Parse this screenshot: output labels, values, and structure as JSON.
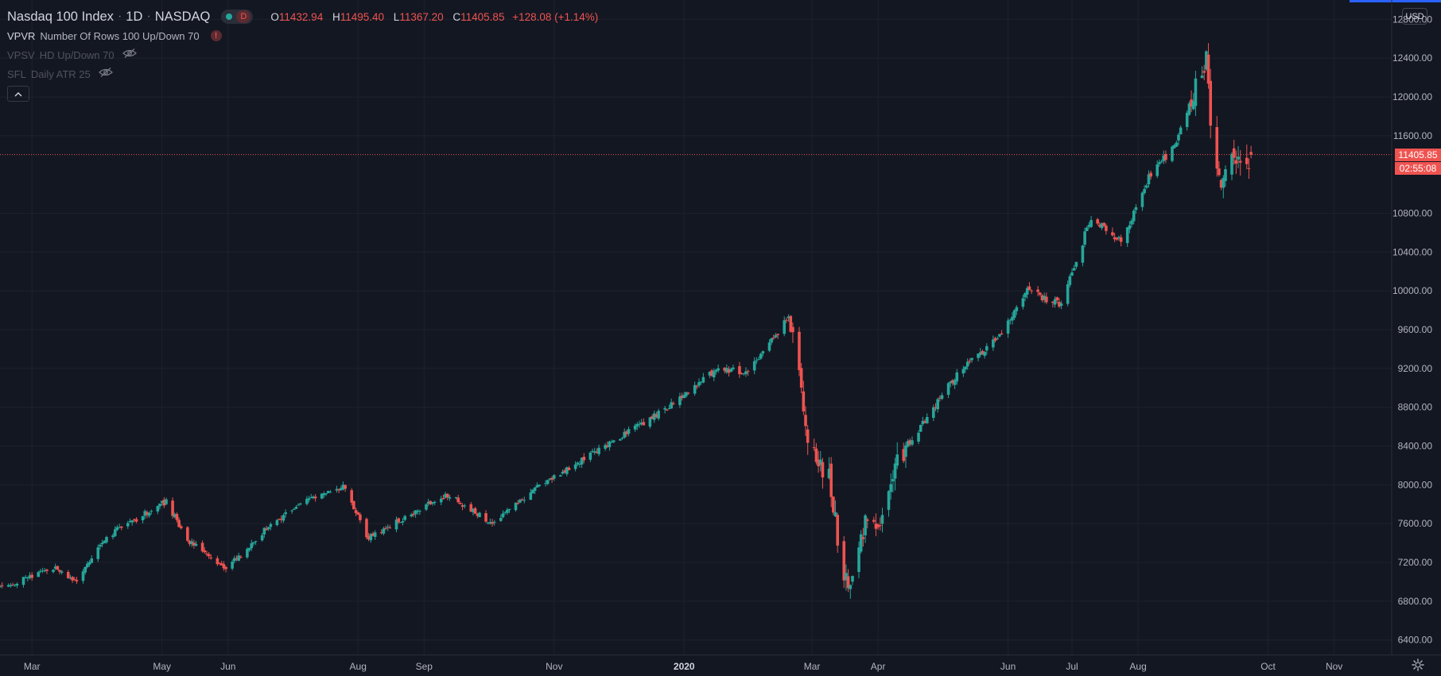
{
  "header": {
    "symbol": "Nasdaq 100 Index",
    "interval": "1D",
    "exchange": "NASDAQ",
    "status_badge": "D",
    "ohlc": {
      "o_label": "O",
      "o": "11432.94",
      "h_label": "H",
      "h": "11495.40",
      "l_label": "L",
      "l": "11367.20",
      "c_label": "C",
      "c": "11405.85",
      "change": "+128.08 (+1.14%)"
    },
    "separator": "·"
  },
  "indicators": [
    {
      "name": "VPVR",
      "args": "Number Of Rows 100 Up/Down 70",
      "status": "error",
      "error_glyph": "!"
    },
    {
      "name": "VPSV",
      "args": "HD Up/Down 70",
      "status": "hidden"
    },
    {
      "name": "SFL",
      "args": "Daily ATR 25",
      "status": "hidden"
    }
  ],
  "price_scale": {
    "currency": "USD",
    "last_price": "11405.85",
    "countdown": "02:55:08",
    "ticks": [
      "12800.00",
      "12400.00",
      "12000.00",
      "11600.00",
      "10800.00",
      "10400.00",
      "10000.00",
      "9600.00",
      "9200.00",
      "8800.00",
      "8400.00",
      "8000.00",
      "7600.00",
      "7200.00",
      "6800.00",
      "6400.00"
    ]
  },
  "time_scale": {
    "ticks": [
      {
        "label": "Mar",
        "bold": false
      },
      {
        "label": "May",
        "bold": false
      },
      {
        "label": "Jun",
        "bold": false
      },
      {
        "label": "Aug",
        "bold": false
      },
      {
        "label": "Sep",
        "bold": false
      },
      {
        "label": "Nov",
        "bold": false
      },
      {
        "label": "2020",
        "bold": true
      },
      {
        "label": "Mar",
        "bold": false
      },
      {
        "label": "Apr",
        "bold": false
      },
      {
        "label": "Jun",
        "bold": false
      },
      {
        "label": "Jul",
        "bold": false
      },
      {
        "label": "Aug",
        "bold": false
      },
      {
        "label": "Oct",
        "bold": false
      },
      {
        "label": "Nov",
        "bold": false
      }
    ]
  },
  "colors": {
    "up": "#26a69a",
    "down": "#ef5350",
    "background": "#131722",
    "grid": "#1e222d",
    "text": "#b2b5be"
  },
  "chart_data": {
    "type": "candlestick",
    "interval": "1D",
    "ylim": [
      6250,
      13000
    ],
    "xlim": [
      "2019-02-14",
      "2020-11-28"
    ],
    "y_ticks": [
      6400,
      6800,
      7200,
      7600,
      8000,
      8400,
      8800,
      9200,
      9600,
      10000,
      10400,
      10800,
      11600,
      12000,
      12400,
      12800
    ],
    "x_ticks": [
      "2019-03-01",
      "2019-05-01",
      "2019-06-01",
      "2019-08-01",
      "2019-09-01",
      "2019-11-01",
      "2020-01-01",
      "2020-03-01",
      "2020-04-01",
      "2020-06-01",
      "2020-07-01",
      "2020-08-01",
      "2020-10-01",
      "2020-11-01"
    ],
    "last_price": 11405.85,
    "close_anchors": [
      [
        "2019-02-14",
        6940
      ],
      [
        "2019-03-01",
        7060
      ],
      [
        "2019-03-12",
        7140
      ],
      [
        "2019-03-22",
        7000
      ],
      [
        "2019-04-05",
        7470
      ],
      [
        "2019-04-23",
        7700
      ],
      [
        "2019-05-03",
        7830
      ],
      [
        "2019-05-13",
        7430
      ],
      [
        "2019-05-31",
        7130
      ],
      [
        "2019-06-20",
        7570
      ],
      [
        "2019-07-12",
        7890
      ],
      [
        "2019-07-26",
        7990
      ],
      [
        "2019-08-05",
        7450
      ],
      [
        "2019-08-20",
        7630
      ],
      [
        "2019-09-12",
        7900
      ],
      [
        "2019-10-03",
        7600
      ],
      [
        "2019-10-25",
        8000
      ],
      [
        "2019-11-27",
        8430
      ],
      [
        "2019-12-20",
        8740
      ],
      [
        "2020-01-17",
        9200
      ],
      [
        "2020-01-31",
        9150
      ],
      [
        "2020-02-19",
        9720
      ],
      [
        "2020-02-24",
        9130
      ],
      [
        "2020-02-28",
        8460
      ],
      [
        "2020-03-09",
        8060
      ],
      [
        "2020-03-16",
        7020
      ],
      [
        "2020-03-20",
        6990
      ],
      [
        "2020-03-26",
        7620
      ],
      [
        "2020-04-01",
        7490
      ],
      [
        "2020-04-09",
        8240
      ],
      [
        "2020-04-21",
        8600
      ],
      [
        "2020-05-08",
        9140
      ],
      [
        "2020-05-29",
        9560
      ],
      [
        "2020-06-10",
        10000
      ],
      [
        "2020-06-26",
        9850
      ],
      [
        "2020-07-10",
        10770
      ],
      [
        "2020-07-24",
        10500
      ],
      [
        "2020-08-05",
        11130
      ],
      [
        "2020-08-18",
        11500
      ],
      [
        "2020-09-02",
        12420
      ],
      [
        "2020-09-04",
        11620
      ],
      [
        "2020-09-08",
        11120
      ],
      [
        "2020-09-15",
        11400
      ],
      [
        "2020-09-21",
        11300
      ],
      [
        "2020-09-23",
        11405.85
      ]
    ]
  }
}
